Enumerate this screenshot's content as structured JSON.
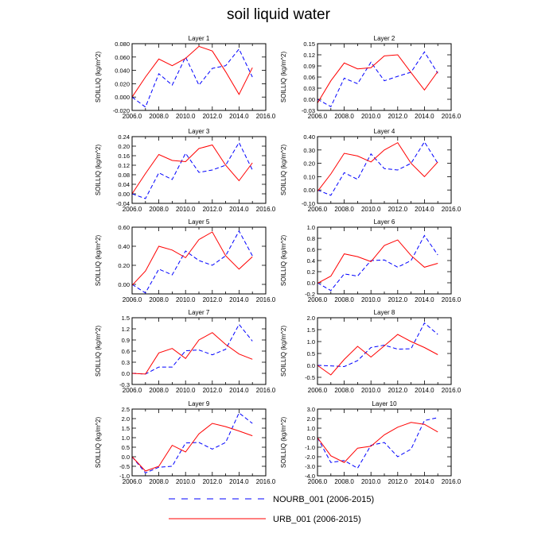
{
  "title": "soil liquid water",
  "legend": {
    "placement": "bottom",
    "entries": [
      {
        "label": "NOURB_001 (2006-2015)",
        "color": "#0000ff",
        "dash": "dashed"
      },
      {
        "label": "URB_001 (2006-2015)",
        "color": "#ff0000",
        "dash": "solid"
      }
    ]
  },
  "x_tick_labels": [
    "2006.0",
    "2008.0",
    "2010.0",
    "2012.0",
    "2014.0",
    "2016.0"
  ],
  "chart_data": [
    {
      "type": "line",
      "title": "Layer 1",
      "ylabel": "SOILLIQ  (kg/m^2)",
      "xlim": [
        2006,
        2016
      ],
      "ylim": [
        -0.02,
        0.08
      ],
      "yticks": [
        -0.02,
        0,
        0.02,
        0.04,
        0.06,
        0.08
      ],
      "ytick_labels": [
        "-0.020",
        "0.000",
        "0.020",
        "0.040",
        "0.060",
        "0.080"
      ],
      "x": [
        2006,
        2007,
        2008,
        2009,
        2010,
        2011,
        2012,
        2013,
        2014,
        2015
      ],
      "series": [
        {
          "name": "NOURB_001 (2006-2015)",
          "values": [
            0.0,
            -0.015,
            0.035,
            0.018,
            0.06,
            0.018,
            0.043,
            0.047,
            0.072,
            0.03
          ]
        },
        {
          "name": "URB_001 (2006-2015)",
          "values": [
            0.0,
            0.03,
            0.057,
            0.047,
            0.058,
            0.076,
            0.069,
            0.038,
            0.004,
            0.044
          ]
        }
      ]
    },
    {
      "type": "line",
      "title": "Layer 2",
      "ylabel": "SOILLIQ  (kg/m^2)",
      "xlim": [
        2006,
        2016
      ],
      "ylim": [
        -0.03,
        0.15
      ],
      "yticks": [
        -0.03,
        0,
        0.03,
        0.06,
        0.09,
        0.12,
        0.15
      ],
      "ytick_labels": [
        "-0.03",
        "0.00",
        "0.03",
        "0.06",
        "0.09",
        "0.12",
        "0.15"
      ],
      "x": [
        2006,
        2007,
        2008,
        2009,
        2010,
        2011,
        2012,
        2013,
        2014,
        2015
      ],
      "series": [
        {
          "name": "NOURB_001 (2006-2015)",
          "values": [
            0.0,
            -0.02,
            0.057,
            0.042,
            0.1,
            0.05,
            0.062,
            0.073,
            0.128,
            0.07
          ]
        },
        {
          "name": "URB_001 (2006-2015)",
          "values": [
            -0.01,
            0.05,
            0.098,
            0.082,
            0.085,
            0.117,
            0.12,
            0.072,
            0.025,
            0.075
          ]
        }
      ]
    },
    {
      "type": "line",
      "title": "Layer 3",
      "ylabel": "SOILLIQ  (kg/m^2)",
      "xlim": [
        2006,
        2016
      ],
      "ylim": [
        -0.04,
        0.24
      ],
      "yticks": [
        -0.04,
        0,
        0.04,
        0.08,
        0.12,
        0.16,
        0.2,
        0.24
      ],
      "ytick_labels": [
        "-0.04",
        "0.00",
        "0.04",
        "0.08",
        "0.12",
        "0.16",
        "0.20",
        "0.24"
      ],
      "x": [
        2006,
        2007,
        2008,
        2009,
        2010,
        2011,
        2012,
        2013,
        2014,
        2015
      ],
      "series": [
        {
          "name": "NOURB_001 (2006-2015)",
          "values": [
            0.0,
            -0.02,
            0.088,
            0.06,
            0.17,
            0.09,
            0.1,
            0.12,
            0.215,
            0.1
          ]
        },
        {
          "name": "URB_001 (2006-2015)",
          "values": [
            0.0,
            0.085,
            0.165,
            0.14,
            0.135,
            0.19,
            0.205,
            0.12,
            0.055,
            0.13
          ]
        }
      ]
    },
    {
      "type": "line",
      "title": "Layer 4",
      "ylabel": "SOILLIQ  (kg/m^2)",
      "xlim": [
        2006,
        2016
      ],
      "ylim": [
        -0.1,
        0.4
      ],
      "yticks": [
        -0.1,
        0,
        0.1,
        0.2,
        0.3,
        0.4
      ],
      "ytick_labels": [
        "-0.10",
        "0.00",
        "0.10",
        "0.20",
        "0.30",
        "0.40"
      ],
      "x": [
        2006,
        2007,
        2008,
        2009,
        2010,
        2011,
        2012,
        2013,
        2014,
        2015
      ],
      "series": [
        {
          "name": "NOURB_001 (2006-2015)",
          "values": [
            0.0,
            -0.04,
            0.13,
            0.08,
            0.27,
            0.16,
            0.15,
            0.2,
            0.36,
            0.2
          ]
        },
        {
          "name": "URB_001 (2006-2015)",
          "values": [
            -0.01,
            0.12,
            0.275,
            0.255,
            0.21,
            0.3,
            0.355,
            0.2,
            0.1,
            0.21
          ]
        }
      ]
    },
    {
      "type": "line",
      "title": "Layer 5",
      "ylabel": "SOILLIQ  (kg/m^2)",
      "xlim": [
        2006,
        2016
      ],
      "ylim": [
        -0.1,
        0.6
      ],
      "yticks": [
        0,
        0.2,
        0.4,
        0.6
      ],
      "ytick_labels": [
        "0.00",
        "0.20",
        "0.40",
        "0.60"
      ],
      "x": [
        2006,
        2007,
        2008,
        2009,
        2010,
        2011,
        2012,
        2013,
        2014,
        2015
      ],
      "series": [
        {
          "name": "NOURB_001 (2006-2015)",
          "values": [
            0.0,
            -0.09,
            0.16,
            0.1,
            0.35,
            0.25,
            0.2,
            0.3,
            0.56,
            0.3
          ]
        },
        {
          "name": "URB_001 (2006-2015)",
          "values": [
            -0.01,
            0.14,
            0.4,
            0.36,
            0.28,
            0.47,
            0.55,
            0.3,
            0.16,
            0.29
          ]
        }
      ]
    },
    {
      "type": "line",
      "title": "Layer 6",
      "ylabel": "SOILLIQ  (kg/m^2)",
      "xlim": [
        2006,
        2016
      ],
      "ylim": [
        -0.2,
        1.0
      ],
      "yticks": [
        -0.2,
        0,
        0.2,
        0.4,
        0.6,
        0.8,
        1.0
      ],
      "ytick_labels": [
        "-0.2",
        "0.0",
        "0.2",
        "0.4",
        "0.6",
        "0.8",
        "1.0"
      ],
      "x": [
        2006,
        2007,
        2008,
        2009,
        2010,
        2011,
        2012,
        2013,
        2014,
        2015
      ],
      "series": [
        {
          "name": "NOURB_001 (2006-2015)",
          "values": [
            0.0,
            -0.14,
            0.16,
            0.12,
            0.4,
            0.41,
            0.28,
            0.4,
            0.85,
            0.5
          ]
        },
        {
          "name": "URB_001 (2006-2015)",
          "values": [
            -0.01,
            0.12,
            0.52,
            0.47,
            0.38,
            0.67,
            0.77,
            0.49,
            0.28,
            0.35
          ]
        }
      ]
    },
    {
      "type": "line",
      "title": "Layer 7",
      "ylabel": "SOILLIQ  (kg/m^2)",
      "xlim": [
        2006,
        2016
      ],
      "ylim": [
        -0.3,
        1.5
      ],
      "yticks": [
        -0.3,
        0,
        0.3,
        0.6,
        0.9,
        1.2,
        1.5
      ],
      "ytick_labels": [
        "-0.3",
        "0.0",
        "0.3",
        "0.6",
        "0.9",
        "1.2",
        "1.5"
      ],
      "x": [
        2006,
        2007,
        2008,
        2009,
        2010,
        2011,
        2012,
        2013,
        2014,
        2015
      ],
      "series": [
        {
          "name": "NOURB_001 (2006-2015)",
          "values": [
            0.0,
            -0.02,
            0.17,
            0.17,
            0.61,
            0.63,
            0.5,
            0.65,
            1.32,
            0.87
          ]
        },
        {
          "name": "URB_001 (2006-2015)",
          "values": [
            0.0,
            -0.02,
            0.55,
            0.67,
            0.4,
            0.9,
            1.1,
            0.78,
            0.52,
            0.38
          ]
        }
      ]
    },
    {
      "type": "line",
      "title": "Layer 8",
      "ylabel": "SOILLIQ  (kg/m^2)",
      "xlim": [
        2006,
        2016
      ],
      "ylim": [
        -0.8,
        2.0
      ],
      "yticks": [
        -0.5,
        0,
        0.5,
        1.0,
        1.5,
        2.0
      ],
      "ytick_labels": [
        "-0.5",
        "0.0",
        "0.5",
        "1.0",
        "1.5",
        "2.0"
      ],
      "x": [
        2006,
        2007,
        2008,
        2009,
        2010,
        2011,
        2012,
        2013,
        2014,
        2015
      ],
      "series": [
        {
          "name": "NOURB_001 (2006-2015)",
          "values": [
            0.0,
            -0.02,
            -0.05,
            0.2,
            0.75,
            0.85,
            0.68,
            0.7,
            1.78,
            1.3
          ]
        },
        {
          "name": "URB_001 (2006-2015)",
          "values": [
            0.0,
            -0.4,
            0.25,
            0.8,
            0.35,
            0.82,
            1.3,
            1.0,
            0.75,
            0.45
          ]
        }
      ]
    },
    {
      "type": "line",
      "title": "Layer 9",
      "ylabel": "SOILLIQ  (kg/m^2)",
      "xlim": [
        2006,
        2016
      ],
      "ylim": [
        -1.0,
        2.5
      ],
      "yticks": [
        -1.0,
        -0.5,
        0,
        0.5,
        1.0,
        1.5,
        2.0,
        2.5
      ],
      "ytick_labels": [
        "-1.0",
        "-0.5",
        "0.0",
        "0.5",
        "1.0",
        "1.5",
        "2.0",
        "2.5"
      ],
      "x": [
        2006,
        2007,
        2008,
        2009,
        2010,
        2011,
        2012,
        2013,
        2014,
        2015
      ],
      "series": [
        {
          "name": "NOURB_001 (2006-2015)",
          "values": [
            0.0,
            -0.85,
            -0.55,
            -0.5,
            0.72,
            0.75,
            0.4,
            0.75,
            2.3,
            1.75
          ]
        },
        {
          "name": "URB_001 (2006-2015)",
          "values": [
            0.0,
            -0.75,
            -0.5,
            0.6,
            0.25,
            1.2,
            1.75,
            1.58,
            1.35,
            1.1
          ]
        }
      ]
    },
    {
      "type": "line",
      "title": "Layer 10",
      "ylabel": "SOILLIQ  (kg/m^2)",
      "xlim": [
        2006,
        2016
      ],
      "ylim": [
        -4.0,
        3.0
      ],
      "yticks": [
        -4.0,
        -3.0,
        -2.0,
        -1.0,
        0,
        1.0,
        2.0,
        3.0
      ],
      "ytick_labels": [
        "-4.0",
        "-3.0",
        "-2.0",
        "-1.0",
        "0.0",
        "1.0",
        "2.0",
        "3.0"
      ],
      "x": [
        2006,
        2007,
        2008,
        2009,
        2010,
        2011,
        2012,
        2013,
        2014,
        2015
      ],
      "series": [
        {
          "name": "NOURB_001 (2006-2015)",
          "values": [
            0.0,
            -2.6,
            -2.4,
            -3.2,
            -0.8,
            -0.5,
            -2.0,
            -1.2,
            1.8,
            2.1
          ]
        },
        {
          "name": "URB_001 (2006-2015)",
          "values": [
            0.0,
            -1.9,
            -2.6,
            -1.1,
            -0.9,
            0.3,
            1.1,
            1.6,
            1.4,
            0.6
          ]
        }
      ]
    }
  ]
}
